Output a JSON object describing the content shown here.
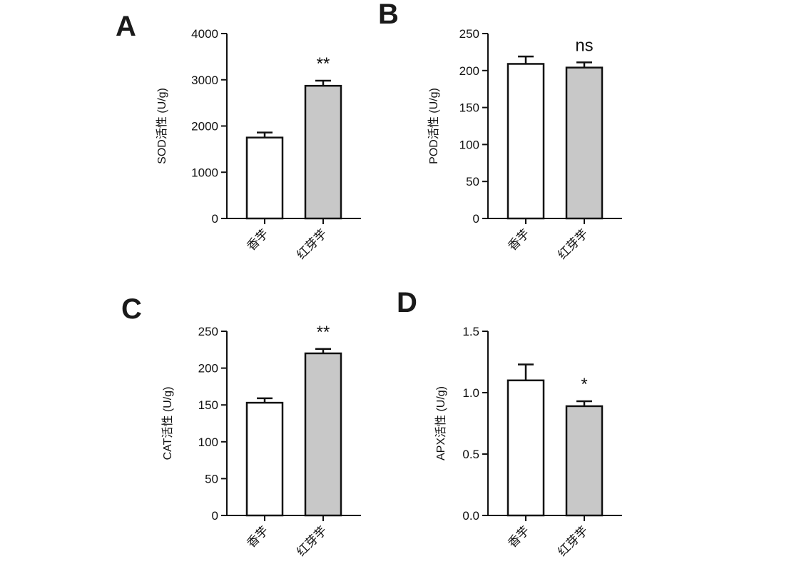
{
  "chart_data": [
    {
      "type": "bar",
      "panel": "A",
      "ylabel": "SOD活性 (U/g)",
      "categories": [
        "香芋",
        "红芽芋"
      ],
      "values": [
        1750,
        2870
      ],
      "errors": [
        110,
        110
      ],
      "significance": "**",
      "ylim": [
        0,
        4000
      ],
      "yticks": [
        0,
        1000,
        2000,
        3000,
        4000
      ],
      "ytick_labels": [
        "0",
        "1000",
        "2000",
        "3000",
        "4000"
      ],
      "bar_colors": [
        "#ffffff",
        "#c8c8c8"
      ]
    },
    {
      "type": "bar",
      "panel": "B",
      "ylabel": "POD活性 (U/g)",
      "categories": [
        "香芋",
        "红芽芋"
      ],
      "values": [
        209,
        204
      ],
      "errors": [
        10,
        7
      ],
      "significance": "ns",
      "ylim": [
        0,
        250
      ],
      "yticks": [
        0,
        50,
        100,
        150,
        200,
        250
      ],
      "ytick_labels": [
        "0",
        "50",
        "100",
        "150",
        "200",
        "250"
      ],
      "bar_colors": [
        "#ffffff",
        "#c8c8c8"
      ]
    },
    {
      "type": "bar",
      "panel": "C",
      "ylabel": "CAT活性 (U/g)",
      "categories": [
        "香芋",
        "红芽芋"
      ],
      "values": [
        153,
        220
      ],
      "errors": [
        6,
        6
      ],
      "significance": "**",
      "ylim": [
        0,
        250
      ],
      "yticks": [
        0,
        50,
        100,
        150,
        200,
        250
      ],
      "ytick_labels": [
        "0",
        "50",
        "100",
        "150",
        "200",
        "250"
      ],
      "bar_colors": [
        "#ffffff",
        "#c8c8c8"
      ]
    },
    {
      "type": "bar",
      "panel": "D",
      "ylabel": "APX活性 (U/g)",
      "categories": [
        "香芋",
        "红芽芋"
      ],
      "values": [
        1.1,
        0.89
      ],
      "errors": [
        0.13,
        0.04
      ],
      "significance": "*",
      "ylim": [
        0,
        1.5
      ],
      "yticks": [
        0,
        0.5,
        1.0,
        1.5
      ],
      "ytick_labels": [
        "0.0",
        "0.5",
        "1.0",
        "1.5"
      ],
      "bar_colors": [
        "#ffffff",
        "#c8c8c8"
      ]
    }
  ]
}
